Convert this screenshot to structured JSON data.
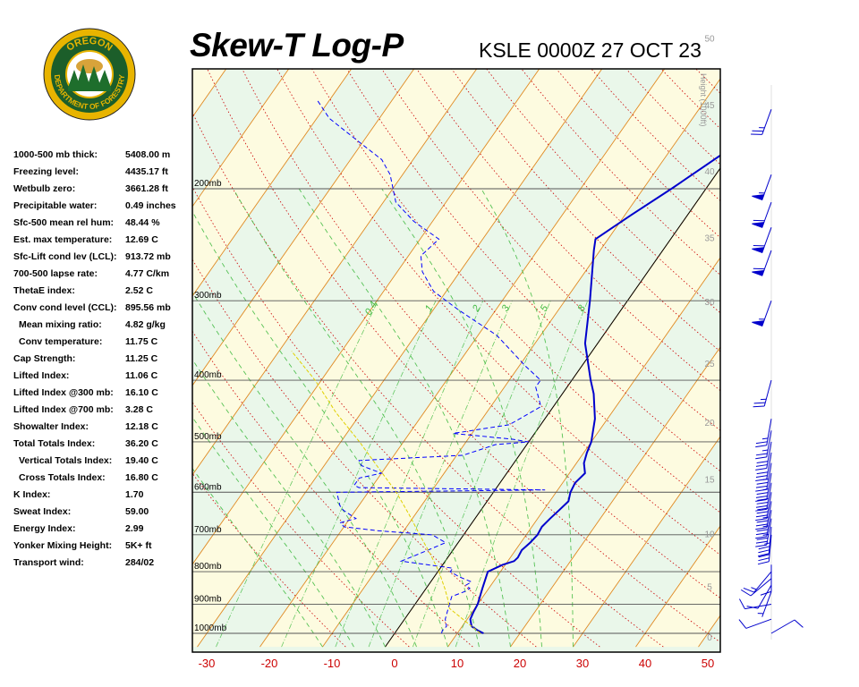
{
  "header": {
    "title": "Skew-T Log-P",
    "station": "KSLE 0000Z 27 OCT 23"
  },
  "logo": {
    "text_top": "OREGON",
    "text_bottom": "DEPARTMENT OF FORESTRY"
  },
  "indices": [
    {
      "label": "1000-500 mb thick:",
      "value": "5408.00 m",
      "indent": false
    },
    {
      "label": "Freezing level:",
      "value": "4435.17 ft",
      "indent": false
    },
    {
      "label": "Wetbulb zero:",
      "value": "3661.28 ft",
      "indent": false
    },
    {
      "label": "Precipitable water:",
      "value": "0.49 inches",
      "indent": false
    },
    {
      "label": "Sfc-500 mean rel hum:",
      "value": "48.44 %",
      "indent": false
    },
    {
      "label": "Est. max temperature:",
      "value": "12.69 C",
      "indent": false
    },
    {
      "label": "Sfc-Lift cond lev (LCL):",
      "value": "913.72 mb",
      "indent": false
    },
    {
      "label": "700-500 lapse rate:",
      "value": "4.77 C/km",
      "indent": false
    },
    {
      "label": "ThetaE index:",
      "value": "2.52 C",
      "indent": false
    },
    {
      "label": "Conv cond level (CCL):",
      "value": "895.56 mb",
      "indent": false
    },
    {
      "label": "Mean mixing ratio:",
      "value": "4.82 g/kg",
      "indent": true
    },
    {
      "label": "Conv temperature:",
      "value": "11.75 C",
      "indent": true
    },
    {
      "label": "Cap Strength:",
      "value": "11.25 C",
      "indent": false
    },
    {
      "label": "Lifted Index:",
      "value": "11.06 C",
      "indent": false
    },
    {
      "label": "Lifted Index @300 mb:",
      "value": "16.10 C",
      "indent": false
    },
    {
      "label": "Lifted Index @700 mb:",
      "value": "3.28 C",
      "indent": false
    },
    {
      "label": "Showalter Index:",
      "value": "12.18 C",
      "indent": false
    },
    {
      "label": "Total Totals Index:",
      "value": "36.20 C",
      "indent": false
    },
    {
      "label": "Vertical Totals Index:",
      "value": "19.40 C",
      "indent": true
    },
    {
      "label": "Cross Totals Index:",
      "value": "16.80 C",
      "indent": true
    },
    {
      "label": "K Index:",
      "value": "1.70",
      "indent": false
    },
    {
      "label": "Sweat Index:",
      "value": "59.00",
      "indent": false
    },
    {
      "label": "Energy Index:",
      "value": "2.99",
      "indent": false
    },
    {
      "label": "Yonker Mixing Height:",
      "value": "5K+ ft",
      "indent": false
    },
    {
      "label": "Transport wind:",
      "value": "284/02",
      "indent": false
    }
  ],
  "chart_data": {
    "type": "line",
    "title": "Skew-T Log-P",
    "subtitle": "KSLE 0000Z 27 OCT 23",
    "x_ticks": [
      -30,
      -20,
      -10,
      0,
      10,
      20,
      30,
      40,
      50
    ],
    "pressure_levels": [
      {
        "p": 200,
        "label": "200mb"
      },
      {
        "p": 300,
        "label": "300mb"
      },
      {
        "p": 400,
        "label": "400mb"
      },
      {
        "p": 500,
        "label": "500mb"
      },
      {
        "p": 600,
        "label": "600mb"
      },
      {
        "p": 700,
        "label": "700mb"
      },
      {
        "p": 800,
        "label": "800mb"
      },
      {
        "p": 900,
        "label": "900mb"
      },
      {
        "p": 1000,
        "label": "1000mb"
      }
    ],
    "height_axis_label": "Height (1000ft)",
    "height_ticks": [
      0,
      5,
      10,
      15,
      20,
      25,
      30,
      35,
      40,
      45,
      50
    ],
    "mixing_ratio_labels": [
      "0.4",
      "1",
      "2",
      "3",
      "5",
      "8"
    ],
    "colors": {
      "temperature": "#0000cc",
      "dewpoint": "#0000ff",
      "parcel": "#e0d000",
      "dry_adiabat": "#dd7700",
      "moist_adiabat": "#cc0000",
      "mixing_ratio": "#44bb44",
      "isotherm_0": "#000000",
      "tick_labels": "#cc0000",
      "height_labels": "#999999",
      "wind_barbs": "#0000cc"
    },
    "series": [
      {
        "name": "Temperature",
        "points": [
          [
            1000,
            14.2
          ],
          [
            990,
            13.0
          ],
          [
            975,
            11.5
          ],
          [
            950,
            10.5
          ],
          [
            925,
            10.2
          ],
          [
            900,
            10.0
          ],
          [
            875,
            9.5
          ],
          [
            850,
            9.0
          ],
          [
            825,
            8.5
          ],
          [
            800,
            8.0
          ],
          [
            780,
            9.6
          ],
          [
            770,
            11.0
          ],
          [
            760,
            11.2
          ],
          [
            740,
            11.0
          ],
          [
            720,
            11.5
          ],
          [
            700,
            11.8
          ],
          [
            680,
            11.6
          ],
          [
            660,
            12.0
          ],
          [
            640,
            12.5
          ],
          [
            620,
            13.0
          ],
          [
            600,
            12.3
          ],
          [
            580,
            12.0
          ],
          [
            560,
            12.5
          ],
          [
            540,
            11.2
          ],
          [
            520,
            10.5
          ],
          [
            500,
            10.0
          ],
          [
            460,
            8.0
          ],
          [
            420,
            5.0
          ],
          [
            400,
            3.0
          ],
          [
            350,
            -2.0
          ],
          [
            300,
            -6.0
          ],
          [
            250,
            -11.0
          ],
          [
            240,
            -12.0
          ],
          [
            220,
            -9.0
          ],
          [
            200,
            -5.5
          ],
          [
            175,
            -1.0
          ],
          [
            150,
            5.0
          ],
          [
            145,
            11.0
          ]
        ]
      },
      {
        "name": "Dewpoint",
        "points": [
          [
            1000,
            7.5
          ],
          [
            990,
            7.3
          ],
          [
            975,
            7.5
          ],
          [
            950,
            6.5
          ],
          [
            925,
            6.0
          ],
          [
            900,
            5.5
          ],
          [
            875,
            5.0
          ],
          [
            860,
            6.5
          ],
          [
            850,
            7.0
          ],
          [
            840,
            6.0
          ],
          [
            830,
            6.5
          ],
          [
            815,
            4.0
          ],
          [
            800,
            2.0
          ],
          [
            790,
            2.0
          ],
          [
            770,
            -7.0
          ],
          [
            750,
            -5.0
          ],
          [
            720,
            -2.0
          ],
          [
            700,
            -5.0
          ],
          [
            690,
            -14.0
          ],
          [
            680,
            -20.0
          ],
          [
            670,
            -21.0
          ],
          [
            660,
            -19.0
          ],
          [
            640,
            -22.0
          ],
          [
            630,
            -23.0
          ],
          [
            600,
            -25.0
          ],
          [
            595,
            8.0
          ],
          [
            590,
            -22.0
          ],
          [
            585,
            -23.0
          ],
          [
            570,
            -23.0
          ],
          [
            560,
            -20.0
          ],
          [
            545,
            -24.0
          ],
          [
            535,
            -25.0
          ],
          [
            525,
            -9.0
          ],
          [
            515,
            -7.0
          ],
          [
            505,
            -5.0
          ],
          [
            500,
            0.0
          ],
          [
            495,
            -3.0
          ],
          [
            485,
            -13.0
          ],
          [
            470,
            -5.0
          ],
          [
            440,
            -2.0
          ],
          [
            410,
            -5.0
          ],
          [
            400,
            -5.0
          ],
          [
            380,
            -9.0
          ],
          [
            340,
            -17.0
          ],
          [
            310,
            -26.0
          ],
          [
            290,
            -32.0
          ],
          [
            270,
            -36.0
          ],
          [
            255,
            -38.0
          ],
          [
            240,
            -37.0
          ],
          [
            225,
            -43.0
          ],
          [
            210,
            -48.0
          ],
          [
            190,
            -52.0
          ],
          [
            180,
            -55.0
          ],
          [
            170,
            -60.0
          ],
          [
            155,
            -68.0
          ],
          [
            145,
            -72.0
          ]
        ]
      },
      {
        "name": "Parcel",
        "points": [
          [
            1000,
            13.7
          ],
          [
            914,
            6.0
          ],
          [
            880,
            4.5
          ],
          [
            850,
            3.0
          ],
          [
            800,
            0.2
          ],
          [
            750,
            -3.2
          ],
          [
            700,
            -7.0
          ],
          [
            650,
            -11.0
          ],
          [
            600,
            -15.5
          ],
          [
            550,
            -21.0
          ],
          [
            500,
            -27.0
          ],
          [
            450,
            -34.0
          ],
          [
            400,
            -41.0
          ],
          [
            360,
            -48.0
          ]
        ]
      }
    ],
    "wind_barbs": [
      {
        "p": 1000,
        "dir": 60,
        "spd": 10
      },
      {
        "p": 950,
        "dir": 250,
        "spd": 10
      },
      {
        "p": 900,
        "dir": 260,
        "spd": 10
      },
      {
        "p": 860,
        "dir": 200,
        "spd": 5
      },
      {
        "p": 840,
        "dir": 210,
        "spd": 10
      },
      {
        "p": 820,
        "dir": 230,
        "spd": 10
      },
      {
        "p": 800,
        "dir": 220,
        "spd": 15
      },
      {
        "p": 780,
        "dir": 180,
        "spd": 10
      },
      {
        "p": 700,
        "dir": 185,
        "spd": 30
      },
      {
        "p": 680,
        "dir": 185,
        "spd": 35
      },
      {
        "p": 660,
        "dir": 190,
        "spd": 35
      },
      {
        "p": 640,
        "dir": 190,
        "spd": 35
      },
      {
        "p": 620,
        "dir": 190,
        "spd": 35
      },
      {
        "p": 600,
        "dir": 190,
        "spd": 40
      },
      {
        "p": 580,
        "dir": 190,
        "spd": 40
      },
      {
        "p": 560,
        "dir": 190,
        "spd": 35
      },
      {
        "p": 540,
        "dir": 190,
        "spd": 35
      },
      {
        "p": 520,
        "dir": 190,
        "spd": 30
      },
      {
        "p": 500,
        "dir": 190,
        "spd": 30
      },
      {
        "p": 480,
        "dir": 190,
        "spd": 25
      },
      {
        "p": 460,
        "dir": 190,
        "spd": 25
      },
      {
        "p": 400,
        "dir": 195,
        "spd": 25
      },
      {
        "p": 300,
        "dir": 200,
        "spd": 55
      },
      {
        "p": 250,
        "dir": 200,
        "spd": 60
      },
      {
        "p": 230,
        "dir": 200,
        "spd": 60
      },
      {
        "p": 210,
        "dir": 200,
        "spd": 60
      },
      {
        "p": 190,
        "dir": 200,
        "spd": 55
      },
      {
        "p": 150,
        "dir": 200,
        "spd": 25
      }
    ]
  }
}
